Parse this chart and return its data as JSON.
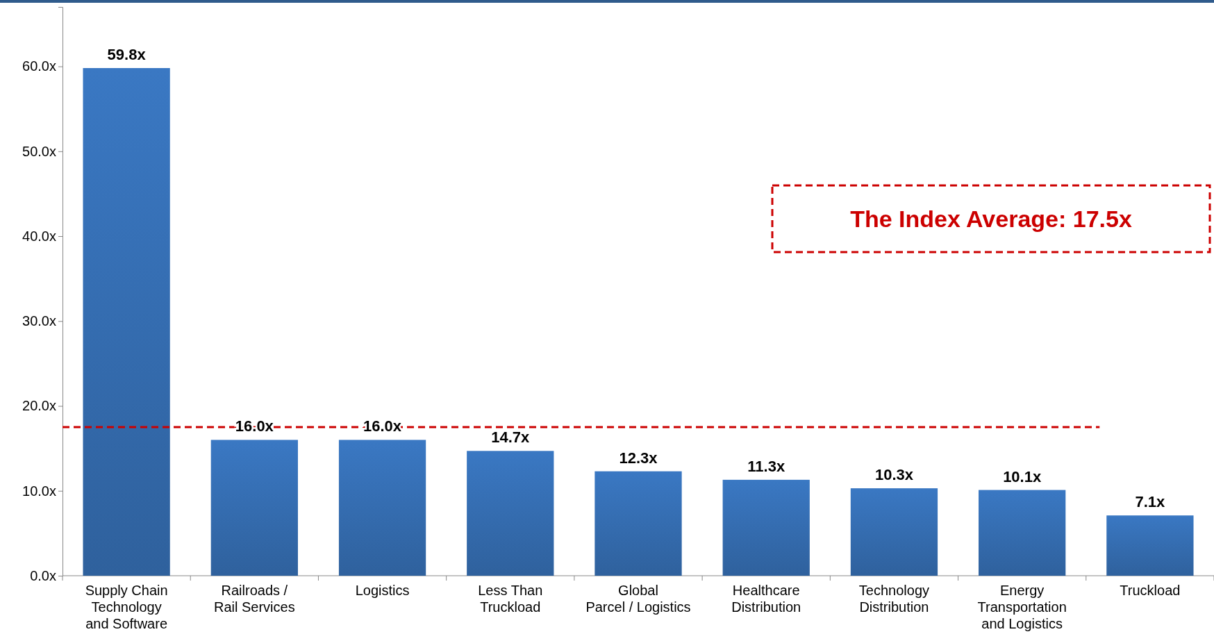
{
  "chart_data": {
    "type": "bar",
    "categories": [
      "Supply Chain\nTechnology\nand Software",
      "Railroads /\nRail Services",
      "Logistics",
      "Less Than\nTruckload",
      "Global\nParcel / Logistics",
      "Healthcare\nDistribution",
      "Technology\nDistribution",
      "Energy\nTransportation\nand Logistics",
      "Truckload"
    ],
    "values": [
      59.8,
      16.0,
      16.0,
      14.7,
      12.3,
      11.3,
      10.3,
      10.1,
      7.1
    ],
    "value_labels": [
      "59.8x",
      "16.0x",
      "16.0x",
      "14.7x",
      "12.3x",
      "11.3x",
      "10.3x",
      "10.1x",
      "7.1x"
    ],
    "color": "#3a78c3",
    "ylim": [
      0,
      67
    ],
    "yticks": [
      {
        "value": 0,
        "label": "0.0x"
      },
      {
        "value": 10,
        "label": "10.0x"
      },
      {
        "value": 20,
        "label": "20.0x"
      },
      {
        "value": 30,
        "label": "30.0x"
      },
      {
        "value": 40,
        "label": "40.0x"
      },
      {
        "value": 50,
        "label": "50.0x"
      },
      {
        "value": 60,
        "label": "60.0x"
      }
    ],
    "ref_lines": [
      {
        "axis": "y",
        "value": 17.5,
        "label": "The Index Average: 17.5x",
        "color": "#cc0000",
        "line_style": "dashed"
      }
    ],
    "grid": false
  }
}
